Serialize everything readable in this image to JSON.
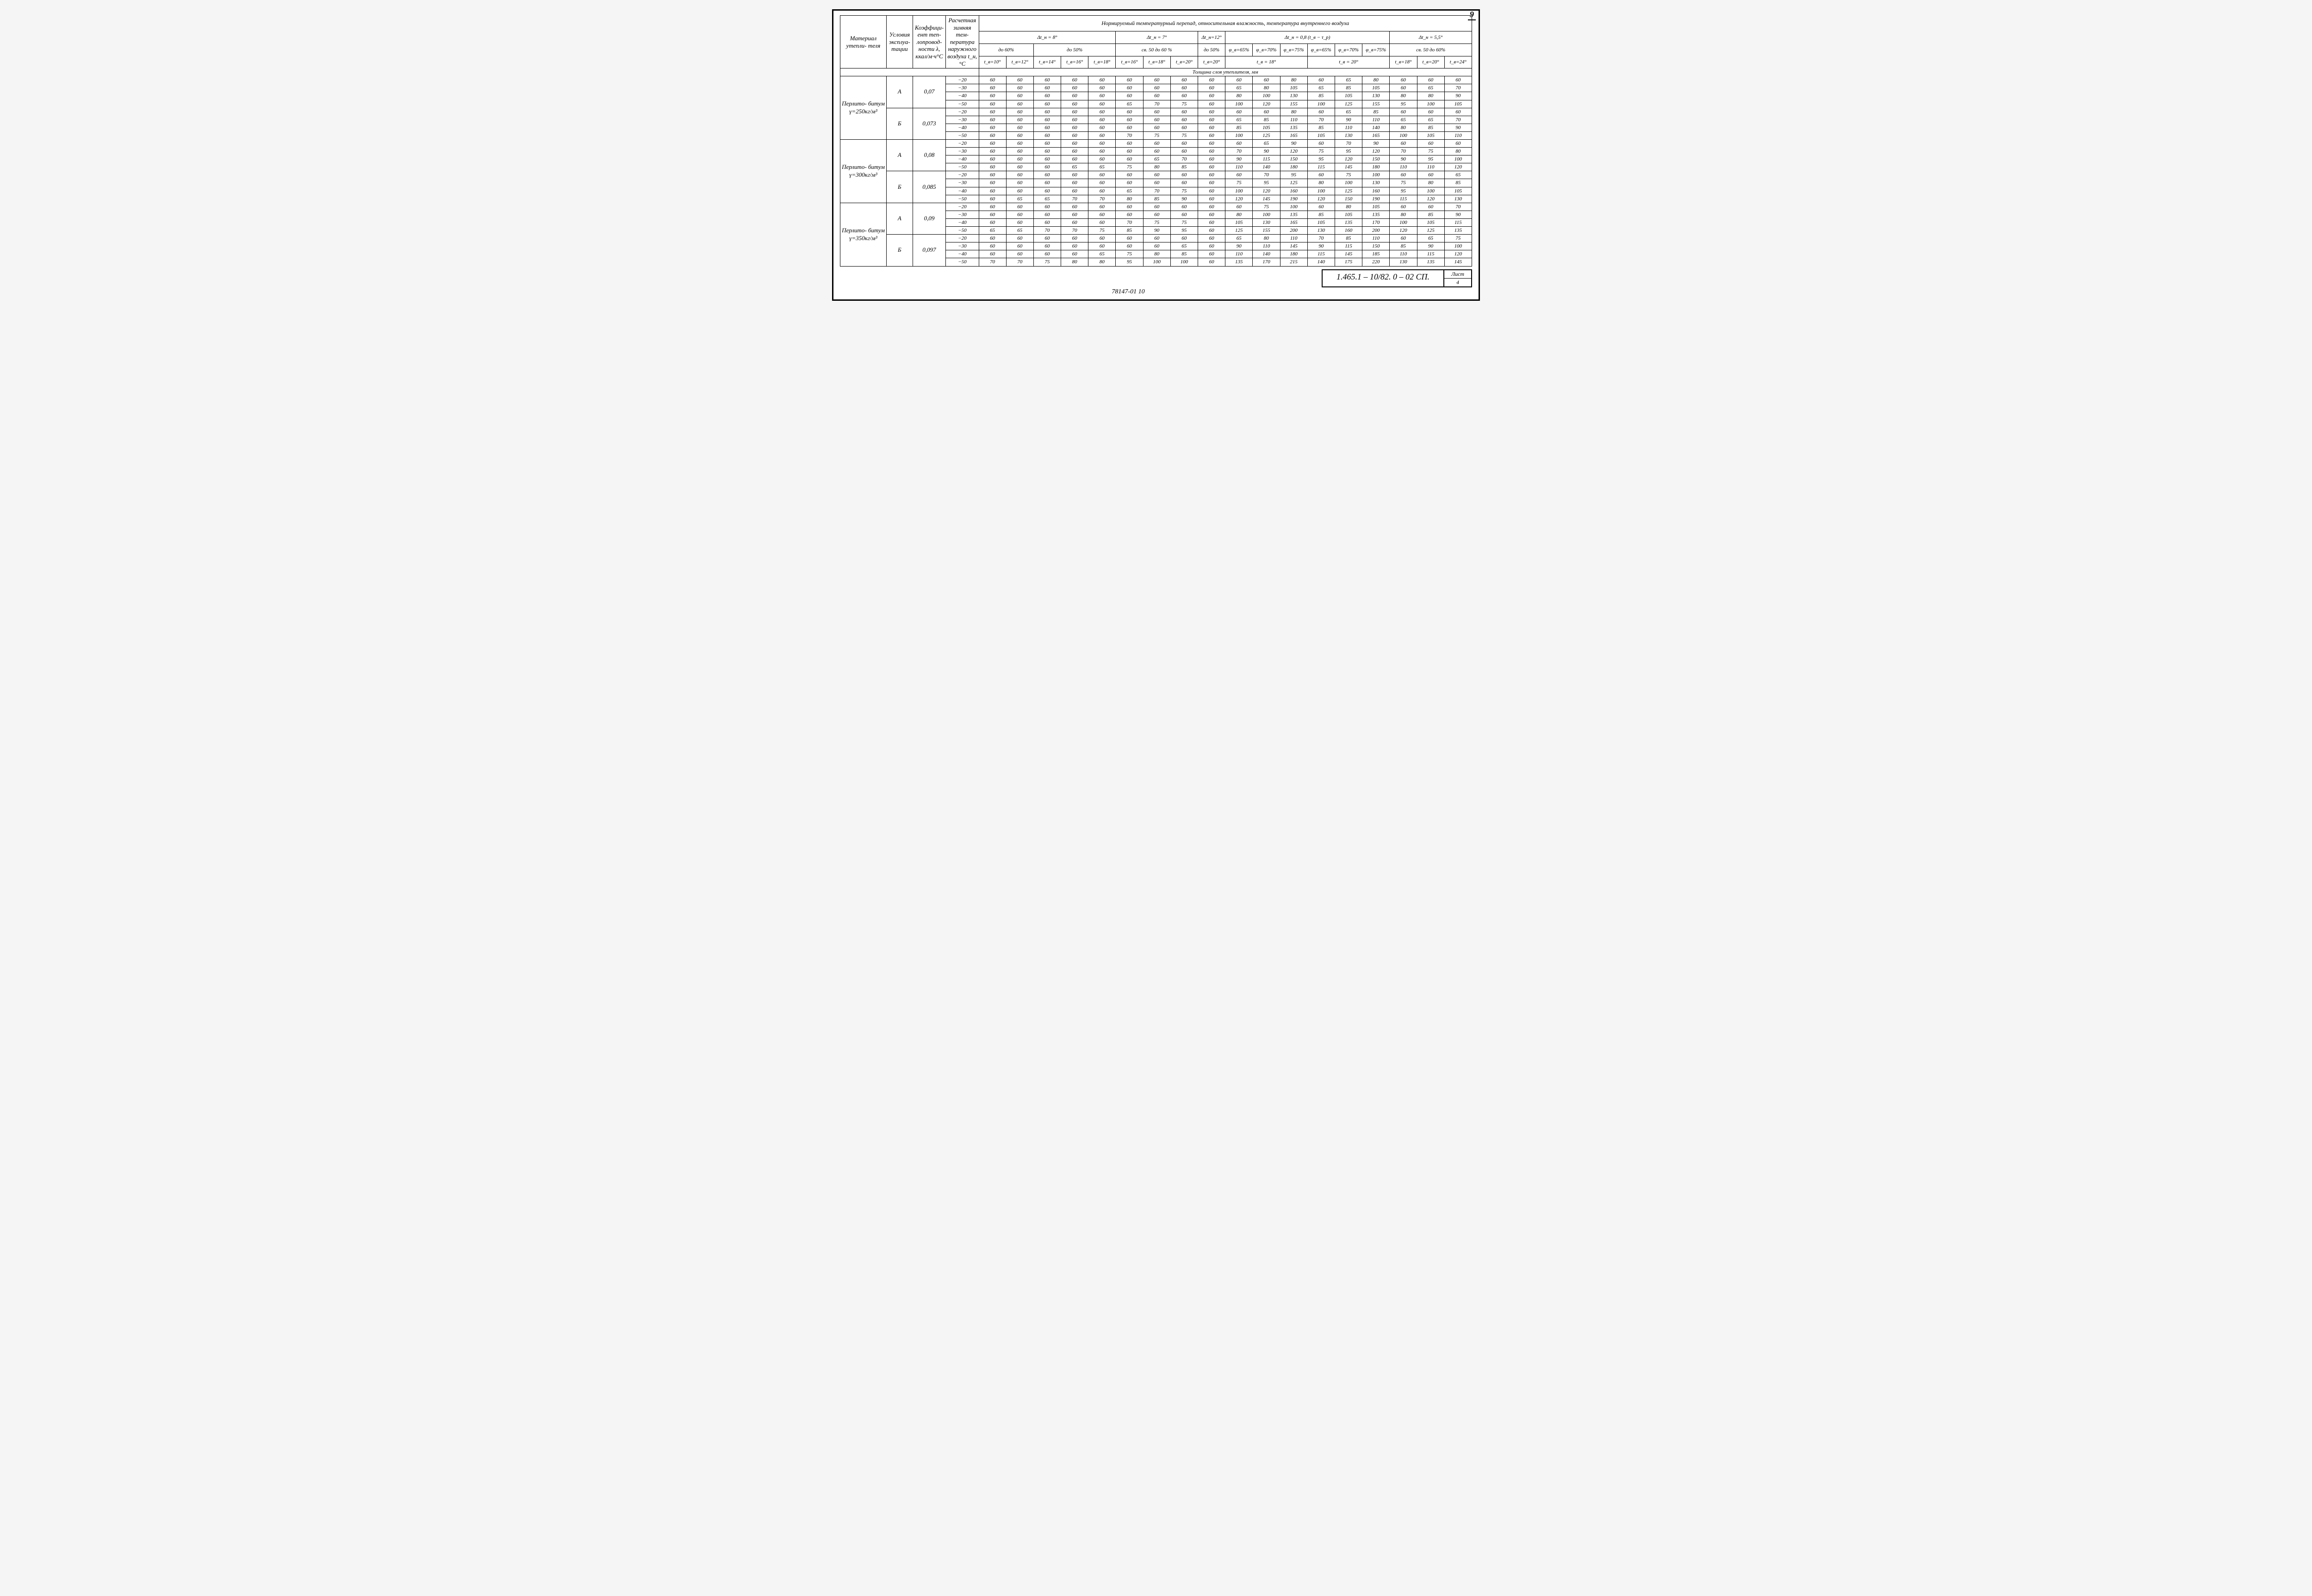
{
  "page_number_top": "9",
  "footer": {
    "doc": "1.465.1 – 10/82. 0 – 02 СП.",
    "sheet_label": "Лист",
    "sheet_num": "4",
    "bottom_code": "78147-01 10"
  },
  "header": {
    "col_material": "Материал утепли-\nтеля",
    "col_cond": "Условия эксплуа-\nтации",
    "col_coef": "Коэффици-\nент теп-\nлопровод-\nности λ,\nккал/м·ч°С",
    "col_temp": "Расчетная зимняя тем-\nпература наружного воздуха\nt_н, °С",
    "super": "Нормируемый температурный перепад, относительная влажность, температура внутреннего воздуха",
    "dt8": "Δt_н = 8°",
    "dt7": "Δt_н = 7°",
    "dt12": "Δt_н=12°",
    "dt08": "Δt_н = 0,8 (t_в − τ_р)",
    "dt55": "Δt_н = 5,5°",
    "do60": "до 60%",
    "do50": "до 50%",
    "sv5060": "св. 50 до 60 %",
    "do50b": "до 50%",
    "f65": "φ_в=65%",
    "f70": "φ_в=70%",
    "f75": "φ_в=75%",
    "f65b": "φ_в=65%",
    "f70b": "φ_в=70%",
    "f75b": "φ_в=75%",
    "sv5060b": "св. 50 до 60%",
    "tv10": "t_в=10°",
    "tv12": "t_в=12°",
    "tv14": "t_в=14°",
    "tv16": "t_в=16°",
    "tv18": "t_в=18°",
    "tv16b": "t_в=16°",
    "tv18b": "t_в=18°",
    "tv20": "t_в=20°",
    "tv20b": "t_в=20°",
    "tv18c": "t_в = 18°",
    "tv20c": "t_в = 20°",
    "tv18d": "t_в=18°",
    "tv20d": "t_в=20°",
    "tv24": "t_в=24°",
    "thickness": "Толщина слоя утеплителя, мм"
  },
  "groups": [
    {
      "material": "Перлито-\nбитум\nγ=250кг/м³",
      "blocks": [
        {
          "cond": "А",
          "coef": "0,07",
          "rows": [
            {
              "t": "−20",
              "v": [
                "60",
                "60",
                "60",
                "60",
                "60",
                "60",
                "60",
                "60",
                "60",
                "60",
                "60",
                "80",
                "60",
                "65",
                "80",
                "60",
                "60",
                "60"
              ]
            },
            {
              "t": "−30",
              "v": [
                "60",
                "60",
                "60",
                "60",
                "60",
                "60",
                "60",
                "60",
                "60",
                "65",
                "80",
                "105",
                "65",
                "85",
                "105",
                "60",
                "65",
                "70"
              ]
            },
            {
              "t": "−40",
              "v": [
                "60",
                "60",
                "60",
                "60",
                "60",
                "60",
                "60",
                "60",
                "60",
                "80",
                "100",
                "130",
                "85",
                "105",
                "130",
                "80",
                "80",
                "90"
              ]
            },
            {
              "t": "−50",
              "v": [
                "60",
                "60",
                "60",
                "60",
                "60",
                "65",
                "70",
                "75",
                "60",
                "100",
                "120",
                "155",
                "100",
                "125",
                "155",
                "95",
                "100",
                "105"
              ]
            }
          ]
        },
        {
          "cond": "Б",
          "coef": "0,073",
          "rows": [
            {
              "t": "−20",
              "v": [
                "60",
                "60",
                "60",
                "60",
                "60",
                "60",
                "60",
                "60",
                "60",
                "60",
                "60",
                "80",
                "60",
                "65",
                "85",
                "60",
                "60",
                "60"
              ]
            },
            {
              "t": "−30",
              "v": [
                "60",
                "60",
                "60",
                "60",
                "60",
                "60",
                "60",
                "60",
                "60",
                "65",
                "85",
                "110",
                "70",
                "90",
                "110",
                "65",
                "65",
                "70"
              ]
            },
            {
              "t": "−40",
              "v": [
                "60",
                "60",
                "60",
                "60",
                "60",
                "60",
                "60",
                "60",
                "60",
                "85",
                "105",
                "135",
                "85",
                "110",
                "140",
                "80",
                "85",
                "90"
              ]
            },
            {
              "t": "−50",
              "v": [
                "60",
                "60",
                "60",
                "60",
                "60",
                "70",
                "75",
                "75",
                "60",
                "100",
                "125",
                "165",
                "105",
                "130",
                "165",
                "100",
                "105",
                "110"
              ]
            }
          ]
        }
      ]
    },
    {
      "material": "Перлито-\nбитум\nγ=300кг/м³",
      "blocks": [
        {
          "cond": "А",
          "coef": "0,08",
          "rows": [
            {
              "t": "−20",
              "v": [
                "60",
                "60",
                "60",
                "60",
                "60",
                "60",
                "60",
                "60",
                "60",
                "60",
                "65",
                "90",
                "60",
                "70",
                "90",
                "60",
                "60",
                "60"
              ]
            },
            {
              "t": "−30",
              "v": [
                "60",
                "60",
                "60",
                "60",
                "60",
                "60",
                "60",
                "60",
                "60",
                "70",
                "90",
                "120",
                "75",
                "95",
                "120",
                "70",
                "75",
                "80"
              ]
            },
            {
              "t": "−40",
              "v": [
                "60",
                "60",
                "60",
                "60",
                "60",
                "60",
                "65",
                "70",
                "60",
                "90",
                "115",
                "150",
                "95",
                "120",
                "150",
                "90",
                "95",
                "100"
              ]
            },
            {
              "t": "−50",
              "v": [
                "60",
                "60",
                "60",
                "65",
                "65",
                "75",
                "80",
                "85",
                "60",
                "110",
                "140",
                "180",
                "115",
                "145",
                "180",
                "110",
                "110",
                "120"
              ]
            }
          ]
        },
        {
          "cond": "Б",
          "coef": "0,085",
          "rows": [
            {
              "t": "−20",
              "v": [
                "60",
                "60",
                "60",
                "60",
                "60",
                "60",
                "60",
                "60",
                "60",
                "60",
                "70",
                "95",
                "60",
                "75",
                "100",
                "60",
                "60",
                "65"
              ]
            },
            {
              "t": "−30",
              "v": [
                "60",
                "60",
                "60",
                "60",
                "60",
                "60",
                "60",
                "60",
                "60",
                "75",
                "95",
                "125",
                "80",
                "100",
                "130",
                "75",
                "80",
                "85"
              ]
            },
            {
              "t": "−40",
              "v": [
                "60",
                "60",
                "60",
                "60",
                "60",
                "65",
                "70",
                "75",
                "60",
                "100",
                "120",
                "160",
                "100",
                "125",
                "160",
                "95",
                "100",
                "105"
              ]
            },
            {
              "t": "−50",
              "v": [
                "60",
                "65",
                "65",
                "70",
                "70",
                "80",
                "85",
                "90",
                "60",
                "120",
                "145",
                "190",
                "120",
                "150",
                "190",
                "115",
                "120",
                "130"
              ]
            }
          ]
        }
      ]
    },
    {
      "material": "Перлито-\nбитум\nγ=350кг/м³",
      "blocks": [
        {
          "cond": "А",
          "coef": "0,09",
          "rows": [
            {
              "t": "−20",
              "v": [
                "60",
                "60",
                "60",
                "60",
                "60",
                "60",
                "60",
                "60",
                "60",
                "60",
                "75",
                "100",
                "60",
                "80",
                "105",
                "60",
                "60",
                "70"
              ]
            },
            {
              "t": "−30",
              "v": [
                "60",
                "60",
                "60",
                "60",
                "60",
                "60",
                "60",
                "60",
                "60",
                "80",
                "100",
                "135",
                "85",
                "105",
                "135",
                "80",
                "85",
                "90"
              ]
            },
            {
              "t": "−40",
              "v": [
                "60",
                "60",
                "60",
                "60",
                "60",
                "70",
                "75",
                "75",
                "60",
                "105",
                "130",
                "165",
                "105",
                "135",
                "170",
                "100",
                "105",
                "115"
              ]
            },
            {
              "t": "−50",
              "v": [
                "65",
                "65",
                "70",
                "70",
                "75",
                "85",
                "90",
                "95",
                "60",
                "125",
                "155",
                "200",
                "130",
                "160",
                "200",
                "120",
                "125",
                "135"
              ]
            }
          ]
        },
        {
          "cond": "Б",
          "coef": "0,097",
          "rows": [
            {
              "t": "−20",
              "v": [
                "60",
                "60",
                "60",
                "60",
                "60",
                "60",
                "60",
                "60",
                "60",
                "65",
                "80",
                "110",
                "70",
                "85",
                "110",
                "60",
                "65",
                "75"
              ]
            },
            {
              "t": "−30",
              "v": [
                "60",
                "60",
                "60",
                "60",
                "60",
                "60",
                "60",
                "65",
                "60",
                "90",
                "110",
                "145",
                "90",
                "115",
                "150",
                "85",
                "90",
                "100"
              ]
            },
            {
              "t": "−40",
              "v": [
                "60",
                "60",
                "60",
                "60",
                "65",
                "75",
                "80",
                "85",
                "60",
                "110",
                "140",
                "180",
                "115",
                "145",
                "185",
                "110",
                "115",
                "120"
              ]
            },
            {
              "t": "−50",
              "v": [
                "70",
                "70",
                "75",
                "80",
                "80",
                "95",
                "100",
                "100",
                "60",
                "135",
                "170",
                "215",
                "140",
                "175",
                "220",
                "130",
                "135",
                "145"
              ]
            }
          ]
        }
      ]
    }
  ]
}
